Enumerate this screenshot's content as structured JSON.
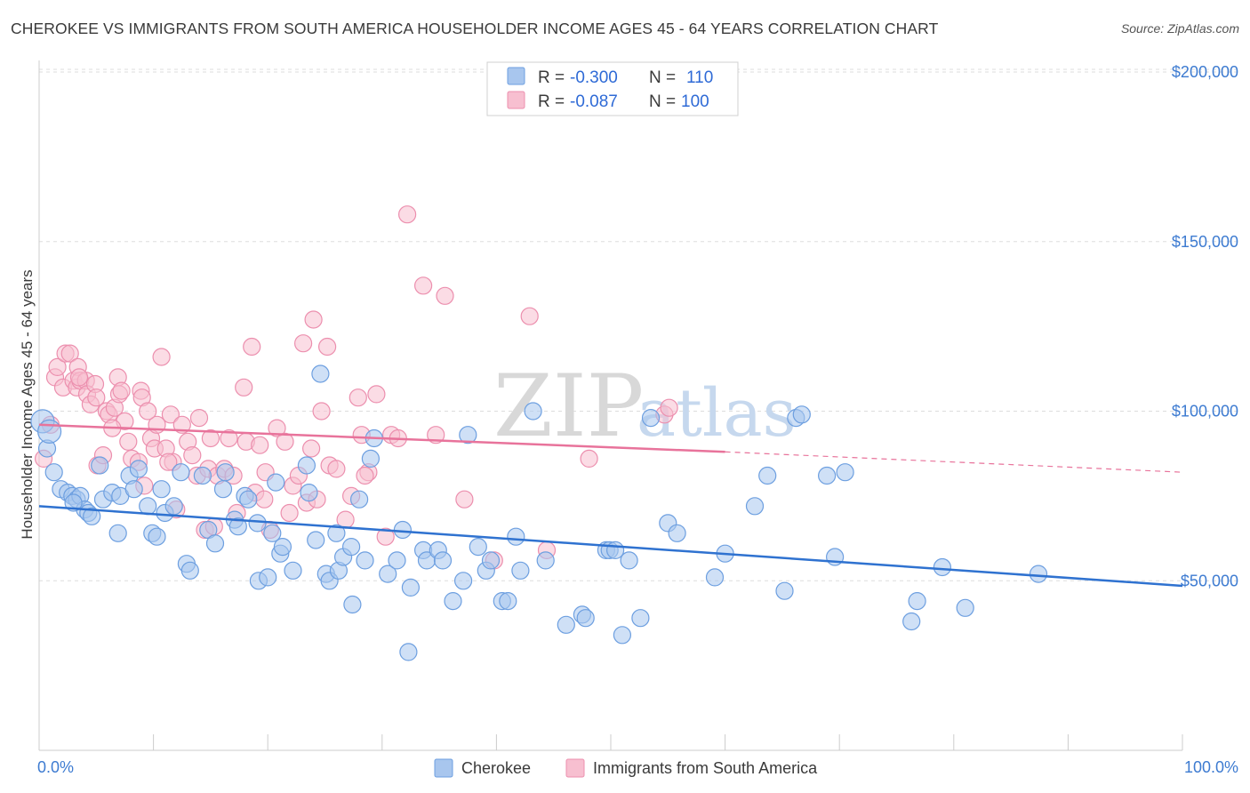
{
  "title": "CHEROKEE VS IMMIGRANTS FROM SOUTH AMERICA HOUSEHOLDER INCOME AGES 45 - 64 YEARS CORRELATION CHART",
  "source": "Source: ZipAtlas.com",
  "watermark": {
    "zip": "ZIP",
    "atlas": "atlas"
  },
  "colors": {
    "blue_fill": "#a8c6ee",
    "blue_stroke": "#6d9fe0",
    "blue_line": "#2f72d0",
    "pink_fill": "#f7bfd0",
    "pink_stroke": "#ec8fae",
    "pink_line": "#e8739b",
    "grid": "#dddddd",
    "axis_text": "#3d7bd1"
  },
  "legend": {
    "rows": [
      {
        "r_label": "R = ",
        "r_value": "-0.300",
        "n_label": "N = ",
        "n_value": "110"
      },
      {
        "r_label": "R = ",
        "r_value": "-0.087",
        "n_label": "N = ",
        "n_value": "100"
      }
    ]
  },
  "chart_data": {
    "type": "scatter",
    "title": "CHEROKEE VS IMMIGRANTS FROM SOUTH AMERICA HOUSEHOLDER INCOME AGES 45 - 64 YEARS CORRELATION CHART",
    "xlabel": "",
    "ylabel": "Householder Income Ages 45 - 64 years",
    "xlim": [
      0,
      100
    ],
    "ylim": [
      0,
      210000
    ],
    "x_tick_labels": [
      "0.0%",
      "100.0%"
    ],
    "y_ticks": [
      50000,
      100000,
      150000,
      200000
    ],
    "y_tick_labels": [
      "$50,000",
      "$100,000",
      "$150,000",
      "$200,000"
    ],
    "grid": "horizontal dashed",
    "legend_position": "top-center and bottom",
    "series": [
      {
        "name": "Cherokee",
        "color": "#a8c6ee",
        "r": -0.3,
        "n": 110,
        "trend": {
          "x": [
            0,
            100
          ],
          "y": [
            72000,
            48500
          ],
          "dashed_from": null
        },
        "points": [
          [
            0.3,
            97000
          ],
          [
            0.7,
            89000
          ],
          [
            1.3,
            82000
          ],
          [
            1.9,
            77000
          ],
          [
            2.5,
            76000
          ],
          [
            2.9,
            75000
          ],
          [
            3.3,
            74000
          ],
          [
            3.6,
            75000
          ],
          [
            4.0,
            71000
          ],
          [
            4.3,
            70000
          ],
          [
            4.6,
            69000
          ],
          [
            5.3,
            84000
          ],
          [
            5.6,
            74000
          ],
          [
            6.4,
            76000
          ],
          [
            6.9,
            64000
          ],
          [
            7.1,
            75000
          ],
          [
            7.9,
            81000
          ],
          [
            8.3,
            77000
          ],
          [
            8.7,
            83000
          ],
          [
            9.5,
            72000
          ],
          [
            9.9,
            64000
          ],
          [
            10.3,
            63000
          ],
          [
            10.7,
            77000
          ],
          [
            11.0,
            70000
          ],
          [
            11.8,
            72000
          ],
          [
            12.4,
            82000
          ],
          [
            12.9,
            55000
          ],
          [
            13.2,
            53000
          ],
          [
            14.3,
            81000
          ],
          [
            14.8,
            65000
          ],
          [
            15.4,
            61000
          ],
          [
            16.1,
            77000
          ],
          [
            16.3,
            82000
          ],
          [
            17.1,
            68000
          ],
          [
            17.4,
            66000
          ],
          [
            18.0,
            75000
          ],
          [
            18.3,
            74000
          ],
          [
            19.1,
            67000
          ],
          [
            19.2,
            50000
          ],
          [
            20.0,
            51000
          ],
          [
            20.4,
            64000
          ],
          [
            20.7,
            79000
          ],
          [
            21.1,
            58000
          ],
          [
            21.3,
            60000
          ],
          [
            22.2,
            53000
          ],
          [
            23.4,
            84000
          ],
          [
            23.6,
            76000
          ],
          [
            24.2,
            62000
          ],
          [
            24.6,
            111000
          ],
          [
            25.1,
            52000
          ],
          [
            25.4,
            50000
          ],
          [
            26.0,
            64000
          ],
          [
            26.2,
            53000
          ],
          [
            26.6,
            57000
          ],
          [
            27.3,
            60000
          ],
          [
            27.4,
            43000
          ],
          [
            28.0,
            74000
          ],
          [
            28.5,
            56000
          ],
          [
            29.0,
            86000
          ],
          [
            29.3,
            92000
          ],
          [
            30.5,
            52000
          ],
          [
            31.3,
            56000
          ],
          [
            31.8,
            65000
          ],
          [
            32.3,
            29000
          ],
          [
            32.5,
            48000
          ],
          [
            33.6,
            59000
          ],
          [
            33.9,
            56000
          ],
          [
            34.9,
            59000
          ],
          [
            35.3,
            56000
          ],
          [
            36.2,
            44000
          ],
          [
            37.1,
            50000
          ],
          [
            37.5,
            93000
          ],
          [
            38.4,
            60000
          ],
          [
            39.1,
            53000
          ],
          [
            39.5,
            56000
          ],
          [
            40.5,
            44000
          ],
          [
            41.0,
            44000
          ],
          [
            41.7,
            63000
          ],
          [
            42.1,
            53000
          ],
          [
            43.2,
            100000
          ],
          [
            44.3,
            56000
          ],
          [
            46.1,
            37000
          ],
          [
            47.5,
            40000
          ],
          [
            47.8,
            39000
          ],
          [
            49.6,
            59000
          ],
          [
            49.9,
            59000
          ],
          [
            50.4,
            59000
          ],
          [
            51.0,
            34000
          ],
          [
            51.6,
            56000
          ],
          [
            52.6,
            39000
          ],
          [
            53.5,
            98000
          ],
          [
            55.0,
            67000
          ],
          [
            55.8,
            64000
          ],
          [
            59.1,
            51000
          ],
          [
            60.0,
            58000
          ],
          [
            62.6,
            72000
          ],
          [
            63.7,
            81000
          ],
          [
            65.2,
            47000
          ],
          [
            66.2,
            98000
          ],
          [
            66.7,
            99000
          ],
          [
            68.9,
            81000
          ],
          [
            69.6,
            57000
          ],
          [
            70.5,
            82000
          ],
          [
            76.3,
            38000
          ],
          [
            76.8,
            44000
          ],
          [
            79.0,
            54000
          ],
          [
            81.0,
            42000
          ],
          [
            87.4,
            52000
          ],
          [
            0.9,
            94000
          ],
          [
            3.0,
            73000
          ]
        ]
      },
      {
        "name": "Immigrants from South America",
        "color": "#f7bfd0",
        "r": -0.087,
        "n": 100,
        "trend": {
          "x": [
            0,
            60,
            100
          ],
          "y": [
            96000,
            88000,
            82000
          ],
          "dashed_from": 60
        },
        "points": [
          [
            0.4,
            86000
          ],
          [
            1.0,
            96000
          ],
          [
            1.4,
            110000
          ],
          [
            1.6,
            113000
          ],
          [
            2.1,
            107000
          ],
          [
            2.3,
            117000
          ],
          [
            2.7,
            117000
          ],
          [
            3.0,
            109000
          ],
          [
            3.3,
            107000
          ],
          [
            3.4,
            113000
          ],
          [
            3.6,
            109000
          ],
          [
            4.1,
            109000
          ],
          [
            4.2,
            105000
          ],
          [
            4.5,
            102000
          ],
          [
            4.9,
            108000
          ],
          [
            5.0,
            104000
          ],
          [
            5.1,
            84000
          ],
          [
            5.6,
            87000
          ],
          [
            5.9,
            100000
          ],
          [
            6.1,
            99000
          ],
          [
            6.6,
            101000
          ],
          [
            6.9,
            110000
          ],
          [
            7.0,
            105000
          ],
          [
            7.2,
            106000
          ],
          [
            7.5,
            97000
          ],
          [
            7.8,
            91000
          ],
          [
            8.1,
            86000
          ],
          [
            8.7,
            85000
          ],
          [
            8.9,
            106000
          ],
          [
            9.0,
            104000
          ],
          [
            9.2,
            78000
          ],
          [
            9.8,
            92000
          ],
          [
            10.1,
            89000
          ],
          [
            10.3,
            96000
          ],
          [
            10.7,
            116000
          ],
          [
            11.1,
            89000
          ],
          [
            11.5,
            99000
          ],
          [
            11.7,
            85000
          ],
          [
            12.0,
            71000
          ],
          [
            12.5,
            96000
          ],
          [
            13.0,
            91000
          ],
          [
            13.4,
            87000
          ],
          [
            13.8,
            81000
          ],
          [
            14.0,
            98000
          ],
          [
            14.5,
            65000
          ],
          [
            14.8,
            83000
          ],
          [
            15.3,
            66000
          ],
          [
            15.6,
            81000
          ],
          [
            16.2,
            83000
          ],
          [
            16.6,
            92000
          ],
          [
            17.0,
            81000
          ],
          [
            17.3,
            70000
          ],
          [
            17.9,
            107000
          ],
          [
            18.1,
            91000
          ],
          [
            18.6,
            119000
          ],
          [
            18.9,
            76000
          ],
          [
            19.3,
            90000
          ],
          [
            19.7,
            74000
          ],
          [
            20.2,
            65000
          ],
          [
            20.8,
            95000
          ],
          [
            21.5,
            91000
          ],
          [
            21.9,
            70000
          ],
          [
            22.2,
            78000
          ],
          [
            22.7,
            81000
          ],
          [
            23.1,
            120000
          ],
          [
            23.4,
            73000
          ],
          [
            23.8,
            89000
          ],
          [
            24.3,
            74000
          ],
          [
            24.7,
            100000
          ],
          [
            25.2,
            119000
          ],
          [
            25.4,
            84000
          ],
          [
            26.0,
            83000
          ],
          [
            26.8,
            68000
          ],
          [
            27.3,
            75000
          ],
          [
            27.9,
            104000
          ],
          [
            28.2,
            93000
          ],
          [
            28.8,
            82000
          ],
          [
            29.5,
            105000
          ],
          [
            30.3,
            63000
          ],
          [
            30.8,
            93000
          ],
          [
            31.4,
            92000
          ],
          [
            32.2,
            158000
          ],
          [
            33.6,
            137000
          ],
          [
            34.7,
            93000
          ],
          [
            35.5,
            134000
          ],
          [
            37.2,
            74000
          ],
          [
            39.8,
            56000
          ],
          [
            42.9,
            128000
          ],
          [
            44.4,
            59000
          ],
          [
            48.1,
            86000
          ],
          [
            54.7,
            99000
          ],
          [
            55.1,
            101000
          ],
          [
            3.5,
            110000
          ],
          [
            11.3,
            85000
          ],
          [
            15.0,
            92000
          ],
          [
            19.8,
            82000
          ],
          [
            24.0,
            127000
          ],
          [
            28.5,
            81000
          ],
          [
            9.5,
            100000
          ],
          [
            6.4,
            95000
          ]
        ]
      }
    ]
  },
  "bottom_legend": [
    {
      "label": "Cherokee"
    },
    {
      "label": "Immigrants from South America"
    }
  ]
}
